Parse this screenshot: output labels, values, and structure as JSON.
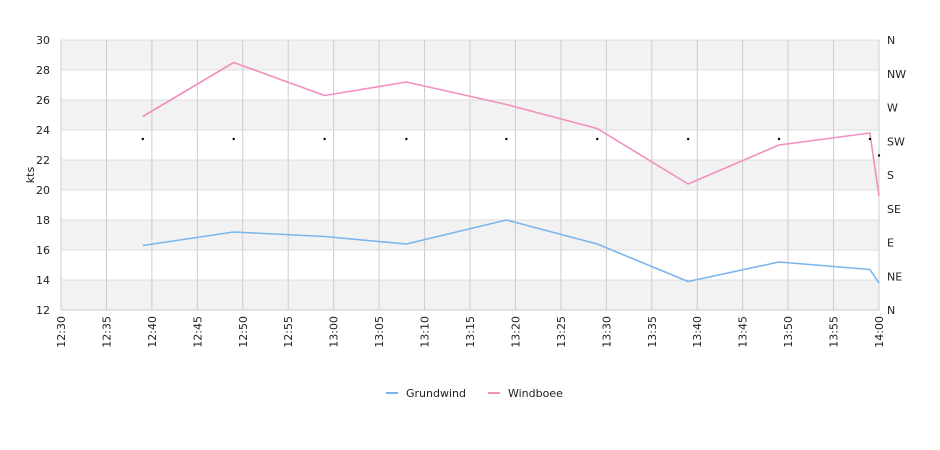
{
  "chart_data": {
    "type": "line",
    "ylabel": "kts",
    "ylim": [
      12,
      30
    ],
    "yticks": [
      12,
      14,
      16,
      18,
      20,
      22,
      24,
      26,
      28,
      30
    ],
    "x_range": [
      "12:30",
      "14:00"
    ],
    "xticks": [
      "12:30",
      "12:35",
      "12:40",
      "12:45",
      "12:50",
      "12:55",
      "13:00",
      "13:05",
      "13:10",
      "13:15",
      "13:20",
      "13:25",
      "13:30",
      "13:35",
      "13:40",
      "13:45",
      "13:50",
      "13:55",
      "14:00"
    ],
    "right_axis_labels": [
      "N",
      "NE",
      "E",
      "SE",
      "S",
      "SW",
      "W",
      "NW",
      "N"
    ],
    "grid": true,
    "legend_position": "bottom-center",
    "series": [
      {
        "name": "Grundwind",
        "color": "#7cb5ec",
        "x": [
          "12:39",
          "12:49",
          "12:59",
          "13:08",
          "13:19",
          "13:29",
          "13:39",
          "13:49",
          "13:59",
          "14:00"
        ],
        "values": [
          16.3,
          17.2,
          16.9,
          16.4,
          18.0,
          16.4,
          13.9,
          15.2,
          14.7,
          13.8
        ]
      },
      {
        "name": "Windboee",
        "color": "#f28fbf",
        "x": [
          "12:39",
          "12:49",
          "12:59",
          "13:08",
          "13:19",
          "13:29",
          "13:39",
          "13:49",
          "13:59",
          "14:00"
        ],
        "values": [
          24.9,
          28.5,
          26.3,
          27.2,
          25.7,
          24.1,
          20.4,
          23.0,
          23.8,
          19.6
        ]
      }
    ],
    "direction_points": {
      "x": [
        "12:39",
        "12:49",
        "12:59",
        "13:08",
        "13:19",
        "13:29",
        "13:39",
        "13:49",
        "13:59",
        "14:00"
      ],
      "values": [
        23.4,
        23.4,
        23.4,
        23.4,
        23.4,
        23.4,
        23.4,
        23.4,
        23.4,
        22.3
      ]
    }
  }
}
